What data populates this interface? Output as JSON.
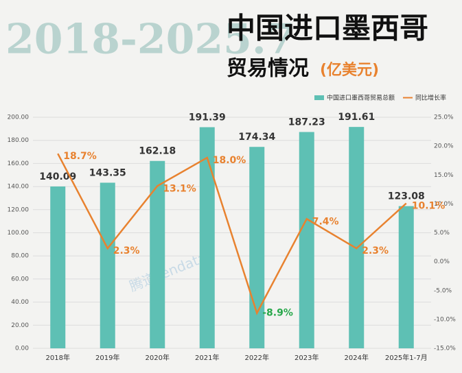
{
  "chart_data": {
    "type": "bar-line",
    "title_year": "2018-2025.7",
    "title": "中国进口墨西哥",
    "subtitle": "贸易情况",
    "unit": "(亿美元)",
    "watermark": "腾道Tendata",
    "categories": [
      "2018年",
      "2019年",
      "2020年",
      "2021年",
      "2022年",
      "2023年",
      "2024年",
      "2025年1-7月"
    ],
    "series": [
      {
        "name": "中国进口墨西哥贸易总额",
        "type": "bar",
        "color": "#5ec0b4",
        "values": [
          140.09,
          143.35,
          162.18,
          191.39,
          174.34,
          187.23,
          191.61,
          123.08
        ]
      },
      {
        "name": "同比增长率",
        "type": "line",
        "axis": "y2",
        "color": "#e8822f",
        "negative_color": "#27a74a",
        "values": [
          18.7,
          2.3,
          13.1,
          18.0,
          -8.9,
          7.4,
          2.3,
          10.1
        ],
        "value_labels": [
          "18.7%",
          "2.3%",
          "13.1%",
          "18.0%",
          "-8.9%",
          "7.4%",
          "2.3%",
          "10.1%"
        ]
      }
    ],
    "ylim": [
      0,
      200
    ],
    "yticks": [
      {
        "value": 0,
        "label": "0.00"
      },
      {
        "value": 20,
        "label": "20.00"
      },
      {
        "value": 40,
        "label": "40.00"
      },
      {
        "value": 60,
        "label": "60.00"
      },
      {
        "value": 80,
        "label": "80.00"
      },
      {
        "value": 100,
        "label": "100.00"
      },
      {
        "value": 120,
        "label": "120.00"
      },
      {
        "value": 140,
        "label": "140.00"
      },
      {
        "value": 160,
        "label": "160.00"
      },
      {
        "value": 180,
        "label": "180.00"
      },
      {
        "value": 200,
        "label": "200.00"
      }
    ],
    "y2lim": [
      -15,
      25
    ],
    "y2ticks": [
      {
        "value": -15,
        "label": "-15.0%"
      },
      {
        "value": -10,
        "label": "-10.0%"
      },
      {
        "value": -5,
        "label": "-5.0%"
      },
      {
        "value": 0,
        "label": "0.0%"
      },
      {
        "value": 5,
        "label": "5.0%"
      },
      {
        "value": 10,
        "label": "10.0%"
      },
      {
        "value": 15,
        "label": "15.0%"
      },
      {
        "value": 20,
        "label": "20.0%"
      },
      {
        "value": 25,
        "label": "25.0%"
      }
    ],
    "grid": true,
    "legend": "top-right"
  }
}
